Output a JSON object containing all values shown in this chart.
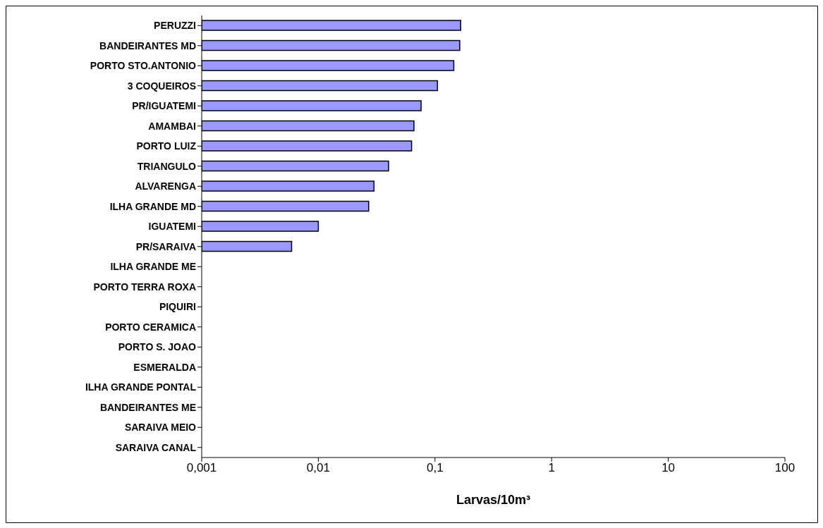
{
  "chart_data": {
    "type": "bar",
    "orientation": "horizontal",
    "log": "x",
    "xlabel": "Larvas/10m³",
    "categories": [
      "PERUZZI",
      "BANDEIRANTES MD",
      "PORTO STO.ANTONIO",
      "3 COQUEIROS",
      "PR/IGUATEMI",
      "AMAMBAI",
      "PORTO LUIZ",
      "TRIANGULO",
      "ALVARENGA",
      "ILHA GRANDE MD",
      "IGUATEMI",
      "PR/SARAIVA",
      "ILHA GRANDE ME",
      "PORTO TERRA ROXA",
      "PIQUIRI",
      "PORTO CERAMICA",
      "PORTO S. JOAO",
      "ESMERALDA",
      "ILHA GRANDE PONTAL",
      "BANDEIRANTES ME",
      "SARAIVA MEIO",
      "SARAIVA CANAL"
    ],
    "values": [
      0.166,
      0.163,
      0.145,
      0.105,
      0.076,
      0.066,
      0.063,
      0.04,
      0.03,
      0.027,
      0.01,
      0.0059,
      null,
      null,
      null,
      null,
      null,
      null,
      null,
      null,
      null,
      null
    ],
    "color": "#9999ff",
    "xlim": [
      0.001,
      100
    ],
    "xticks": [
      {
        "value": 0.001,
        "label": "0,001"
      },
      {
        "value": 0.01,
        "label": "0,01"
      },
      {
        "value": 0.1,
        "label": "0,1"
      },
      {
        "value": 1,
        "label": "1"
      },
      {
        "value": 10,
        "label": "10"
      },
      {
        "value": 100,
        "label": "100"
      }
    ],
    "grid": false,
    "legend": false
  }
}
